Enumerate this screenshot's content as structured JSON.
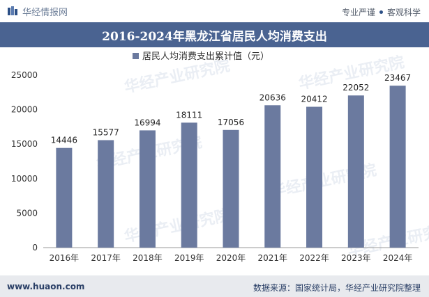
{
  "header": {
    "brand": "华经情报网",
    "tag1": "专业严谨",
    "tag2": "客观科学"
  },
  "title": "2016-2024年黑龙江省居民人均消费支出",
  "footer": {
    "url": "www.huaon.com",
    "source": "数据来源：国家统计局，华经产业研究院整理"
  },
  "colors": {
    "bar": "#6b7a9f",
    "title_bg": "#4a6391"
  },
  "chart_data": {
    "type": "bar",
    "categories": [
      "2016年",
      "2017年",
      "2018年",
      "2019年",
      "2020年",
      "2021年",
      "2022年",
      "2023年",
      "2024年"
    ],
    "series": [
      {
        "name": "居民人均消费支出累计值（元）",
        "values": [
          14446,
          15577,
          16994,
          18111,
          17056,
          20636,
          20412,
          22052,
          23467
        ]
      }
    ],
    "ylim": [
      0,
      25000
    ],
    "yticks": [
      0,
      5000,
      10000,
      15000,
      20000,
      25000
    ],
    "legend": "top",
    "grid": false
  }
}
